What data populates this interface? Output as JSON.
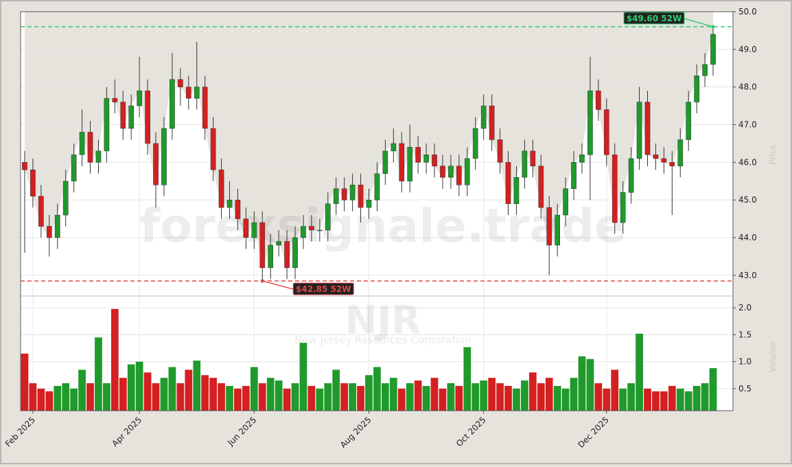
{
  "chart_data": {
    "type": "candlestick",
    "categories": [
      null,
      "Feb 2025",
      null,
      null,
      null,
      null,
      null,
      null,
      null,
      null,
      null,
      null,
      null,
      null,
      "Apr 2025",
      null,
      null,
      null,
      null,
      null,
      null,
      null,
      null,
      null,
      null,
      null,
      null,
      null,
      "Jun 2025",
      null,
      null,
      null,
      null,
      null,
      null,
      null,
      null,
      null,
      null,
      null,
      null,
      null,
      "Aug 2025",
      null,
      null,
      null,
      null,
      null,
      null,
      null,
      null,
      null,
      null,
      null,
      null,
      null,
      "Oct 2025",
      null,
      null,
      null,
      null,
      null,
      null,
      null,
      null,
      null,
      null,
      null,
      null,
      null,
      null,
      "Dec 2025",
      null,
      null,
      null,
      null,
      null,
      null,
      null,
      null,
      null,
      null,
      null,
      null,
      null
    ],
    "open": [
      46.0,
      45.8,
      45.1,
      44.3,
      44.0,
      44.6,
      45.5,
      46.2,
      46.8,
      46.0,
      46.3,
      47.7,
      47.6,
      46.9,
      47.5,
      47.9,
      46.5,
      45.4,
      46.9,
      48.2,
      48.0,
      47.7,
      48.0,
      46.9,
      45.8,
      44.8,
      45.0,
      44.5,
      44.0,
      44.4,
      43.2,
      43.8,
      43.9,
      43.2,
      44.0,
      44.3,
      44.2,
      44.2,
      44.9,
      45.3,
      45.0,
      45.4,
      44.8,
      45.0,
      45.7,
      46.3,
      46.5,
      45.5,
      46.4,
      46.0,
      46.2,
      45.9,
      45.6,
      45.9,
      45.4,
      46.1,
      46.9,
      47.5,
      46.6,
      46.0,
      44.9,
      45.6,
      46.3,
      45.9,
      44.8,
      43.8,
      44.6,
      45.3,
      46.0,
      46.2,
      47.9,
      47.4,
      46.2,
      44.4,
      45.2,
      46.1,
      47.6,
      46.2,
      46.1,
      46.0,
      45.9,
      46.6,
      47.6,
      48.3,
      48.6
    ],
    "high": [
      46.3,
      46.1,
      45.4,
      44.6,
      44.9,
      45.8,
      46.5,
      47.4,
      47.1,
      46.6,
      48.0,
      48.2,
      47.9,
      47.8,
      48.8,
      48.2,
      46.8,
      47.2,
      48.9,
      48.5,
      48.3,
      49.2,
      48.3,
      47.2,
      46.1,
      45.5,
      45.3,
      44.8,
      44.7,
      44.7,
      44.1,
      44.2,
      44.2,
      44.3,
      44.6,
      44.6,
      44.5,
      45.2,
      45.6,
      45.6,
      45.7,
      45.7,
      45.3,
      46.0,
      46.6,
      46.9,
      46.8,
      47.0,
      46.7,
      46.5,
      46.5,
      46.2,
      46.2,
      46.2,
      46.4,
      47.2,
      47.8,
      47.8,
      46.9,
      46.3,
      45.9,
      46.6,
      46.6,
      46.2,
      45.1,
      44.9,
      45.6,
      46.3,
      46.5,
      48.8,
      48.2,
      47.7,
      46.5,
      45.5,
      46.4,
      48.0,
      47.9,
      46.5,
      46.4,
      46.3,
      46.9,
      47.9,
      48.6,
      48.9,
      49.6
    ],
    "low": [
      43.6,
      44.8,
      44.0,
      43.5,
      43.7,
      44.3,
      45.2,
      45.9,
      45.7,
      45.7,
      46.0,
      47.3,
      46.6,
      46.6,
      47.2,
      46.2,
      44.8,
      45.1,
      46.6,
      47.5,
      47.4,
      47.4,
      46.6,
      45.5,
      44.5,
      44.5,
      44.2,
      43.7,
      43.7,
      42.85,
      42.9,
      43.5,
      42.9,
      42.9,
      43.7,
      43.9,
      43.9,
      43.9,
      44.6,
      44.7,
      44.7,
      44.4,
      44.5,
      44.7,
      45.4,
      46.0,
      45.2,
      45.2,
      45.7,
      45.7,
      45.6,
      45.3,
      45.3,
      45.1,
      45.1,
      45.8,
      46.6,
      46.3,
      45.7,
      44.6,
      44.6,
      45.3,
      45.6,
      44.5,
      43.0,
      43.5,
      44.3,
      45.0,
      45.7,
      45.0,
      47.1,
      45.9,
      44.1,
      44.1,
      44.9,
      45.8,
      45.9,
      45.8,
      45.7,
      44.6,
      45.6,
      46.3,
      47.3,
      48.0,
      48.3
    ],
    "close": [
      45.8,
      45.1,
      44.3,
      44.0,
      44.6,
      45.5,
      46.2,
      46.8,
      46.0,
      46.3,
      47.7,
      47.6,
      46.9,
      47.5,
      47.9,
      46.5,
      45.4,
      46.9,
      48.2,
      48.0,
      47.7,
      48.0,
      46.9,
      45.8,
      44.8,
      45.0,
      44.5,
      44.0,
      44.4,
      43.2,
      43.8,
      43.9,
      43.2,
      44.0,
      44.3,
      44.2,
      44.2,
      44.9,
      45.3,
      45.0,
      45.4,
      44.8,
      45.0,
      45.7,
      46.3,
      46.5,
      45.5,
      46.4,
      46.0,
      46.2,
      45.9,
      45.6,
      45.9,
      45.4,
      46.1,
      46.9,
      47.5,
      46.6,
      46.0,
      44.9,
      45.6,
      46.3,
      45.9,
      44.8,
      43.8,
      44.6,
      45.3,
      46.0,
      46.2,
      47.9,
      47.4,
      46.2,
      44.4,
      45.2,
      46.1,
      47.6,
      46.2,
      46.1,
      46.0,
      45.9,
      46.6,
      47.6,
      48.3,
      48.6,
      49.4
    ],
    "volume": [
      1.15,
      0.6,
      0.5,
      0.45,
      0.55,
      0.6,
      0.5,
      0.85,
      0.6,
      1.45,
      0.6,
      1.98,
      0.7,
      0.95,
      1.0,
      0.8,
      0.6,
      0.7,
      0.9,
      0.6,
      0.85,
      1.02,
      0.75,
      0.7,
      0.6,
      0.55,
      0.5,
      0.55,
      0.9,
      0.6,
      0.7,
      0.65,
      0.5,
      0.6,
      1.35,
      0.55,
      0.5,
      0.6,
      0.85,
      0.6,
      0.6,
      0.55,
      0.75,
      0.9,
      0.6,
      0.7,
      0.5,
      0.6,
      0.65,
      0.55,
      0.7,
      0.5,
      0.6,
      0.55,
      1.27,
      0.6,
      0.65,
      0.7,
      0.6,
      0.55,
      0.5,
      0.65,
      0.8,
      0.6,
      0.7,
      0.55,
      0.5,
      0.7,
      1.1,
      1.05,
      0.6,
      0.5,
      0.85,
      0.5,
      0.6,
      1.52,
      0.5,
      0.45,
      0.45,
      0.55,
      0.5,
      0.45,
      0.55,
      0.6,
      0.88
    ],
    "up_color": "#1f9a2b",
    "down_color": "#d42020",
    "area_color": "#e6e3dd",
    "ylim": [
      42.45,
      50.0
    ],
    "yticks": [
      {
        "value": 43,
        "label": "43.0"
      },
      {
        "value": 44,
        "label": "44.0"
      },
      {
        "value": 45,
        "label": "45.0"
      },
      {
        "value": 46,
        "label": "46.0"
      },
      {
        "value": 47,
        "label": "47.0"
      },
      {
        "value": 48,
        "label": "48.0"
      },
      {
        "value": 49,
        "label": "49.0"
      },
      {
        "value": 50,
        "label": "50.0"
      }
    ],
    "volume_ylim": [
      0.09,
      2.22
    ],
    "volume_yticks": [
      0.5,
      {
        "value": 1,
        "label": "1.0"
      },
      1.5,
      {
        "value": 2,
        "label": "2.0"
      }
    ],
    "grid": true,
    "ylabel": "Price",
    "volume_label": "Volume",
    "annotations": [
      {
        "value": 49.6,
        "label": "$49.60 52W",
        "color": "#2ecc71"
      },
      {
        "value": 42.85,
        "label": "$42.85 52W",
        "color": "#e04848"
      }
    ],
    "watermark": "forexsignale.trade",
    "symbol": "NJR",
    "company": "New Jersey Resources Corporation"
  }
}
